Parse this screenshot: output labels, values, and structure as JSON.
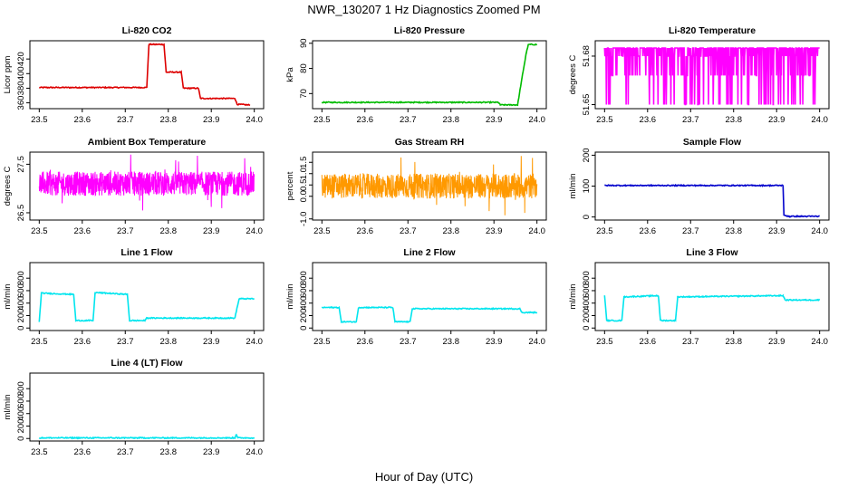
{
  "figure": {
    "title": "NWR_130207  1 Hz Diagnostics Zoomed PM",
    "xlabel": "Hour of Day (UTC)"
  },
  "chart_data": [
    {
      "type": "line",
      "title": "Li-820 CO2",
      "ylabel": "Licor ppm",
      "color": "#dd0000",
      "xlim": [
        23.5,
        24.0
      ],
      "ylim": [
        352,
        445
      ],
      "x_ticks": [
        "23.5",
        "23.6",
        "23.7",
        "23.8",
        "23.9",
        "24.0"
      ],
      "y_ticks": [
        "360",
        "380",
        "400",
        "420"
      ],
      "x": [
        23.5,
        23.75,
        23.755,
        23.79,
        23.795,
        23.83,
        23.835,
        23.87,
        23.875,
        23.955,
        23.96,
        23.99
      ],
      "y": [
        381,
        381,
        440,
        440,
        402,
        402,
        380,
        380,
        366,
        366,
        358,
        357
      ]
    },
    {
      "type": "line",
      "title": "Li-820 Pressure",
      "ylabel": "kPa",
      "color": "#00bb00",
      "xlim": [
        23.5,
        24.0
      ],
      "ylim": [
        64,
        91
      ],
      "x_ticks": [
        "23.5",
        "23.6",
        "23.7",
        "23.8",
        "23.9",
        "24.0"
      ],
      "y_ticks": [
        "70",
        "80",
        "90"
      ],
      "x": [
        23.5,
        23.91,
        23.915,
        23.955,
        23.965,
        23.975,
        23.98,
        24.0
      ],
      "y": [
        66.5,
        66.5,
        65.5,
        65.5,
        76,
        86,
        89.5,
        89.5
      ]
    },
    {
      "type": "line",
      "title": "Li-820 Temperature",
      "ylabel": "degrees C",
      "color": "#ff00ff",
      "xlim": [
        23.5,
        24.0
      ],
      "ylim": [
        51.6475,
        51.6895
      ],
      "x_ticks": [
        "23.5",
        "23.6",
        "23.7",
        "23.8",
        "23.9",
        "24.0"
      ],
      "y_ticks": [
        "51.65",
        "51.68"
      ],
      "levels": [
        51.65,
        51.668,
        51.68,
        51.685
      ]
    },
    {
      "type": "line",
      "title": "Ambient Box Temperature",
      "ylabel": "degrees C",
      "color": "#ff00ff",
      "xlim": [
        23.5,
        24.0
      ],
      "ylim": [
        26.35,
        27.75
      ],
      "x_ticks": [
        "23.5",
        "23.6",
        "23.7",
        "23.8",
        "23.9",
        "24.0"
      ],
      "y_ticks": [
        "26.5",
        "27.5"
      ],
      "mean": 27.1,
      "band": [
        26.85,
        27.35
      ]
    },
    {
      "type": "line",
      "title": "Gas Stream RH",
      "ylabel": "percent",
      "color": "#ff9900",
      "xlim": [
        23.5,
        24.0
      ],
      "ylim": [
        -1.05,
        1.95
      ],
      "x_ticks": [
        "23.5",
        "23.6",
        "23.7",
        "23.8",
        "23.9",
        "24.0"
      ],
      "y_ticks": [
        "-1.0",
        "0.0",
        "0.5",
        "1.0",
        "1.5"
      ],
      "mean": 0.5,
      "band": [
        -0.1,
        1.0
      ]
    },
    {
      "type": "line",
      "title": "Sample Flow",
      "ylabel": "ml/min",
      "color": "#0000cc",
      "xlim": [
        23.5,
        24.0
      ],
      "ylim": [
        -10,
        210
      ],
      "x_ticks": [
        "23.5",
        "23.6",
        "23.7",
        "23.8",
        "23.9",
        "24.0"
      ],
      "y_ticks": [
        "0",
        "100",
        "200"
      ],
      "x": [
        23.5,
        23.915,
        23.917,
        23.93,
        24.0
      ],
      "y": [
        102,
        102,
        5,
        2,
        2
      ]
    },
    {
      "type": "line",
      "title": "Line 1 Flow",
      "ylabel": "ml/min",
      "color": "#00e5ee",
      "xlim": [
        23.5,
        24.0
      ],
      "ylim": [
        -40,
        1050
      ],
      "x_ticks": [
        "23.5",
        "23.6",
        "23.7",
        "23.8",
        "23.9",
        "24.0"
      ],
      "y_ticks": [
        "0",
        "200",
        "400",
        "600",
        "800"
      ],
      "x": [
        23.5,
        23.505,
        23.58,
        23.585,
        23.625,
        23.63,
        23.705,
        23.71,
        23.745,
        23.75,
        23.955,
        23.96,
        23.965,
        24.0
      ],
      "y": [
        100,
        560,
        540,
        120,
        120,
        570,
        540,
        120,
        120,
        160,
        160,
        330,
        470,
        470
      ]
    },
    {
      "type": "line",
      "title": "Line 2 Flow",
      "ylabel": "ml/min",
      "color": "#00e5ee",
      "xlim": [
        23.5,
        24.0
      ],
      "ylim": [
        -40,
        1050
      ],
      "x_ticks": [
        "23.5",
        "23.6",
        "23.7",
        "23.8",
        "23.9",
        "24.0"
      ],
      "y_ticks": [
        "0",
        "200",
        "400",
        "600",
        "800"
      ],
      "x": [
        23.5,
        23.54,
        23.545,
        23.58,
        23.585,
        23.665,
        23.67,
        23.705,
        23.71,
        23.96,
        23.965,
        24.0
      ],
      "y": [
        330,
        330,
        100,
        100,
        330,
        330,
        100,
        100,
        310,
        310,
        250,
        250
      ]
    },
    {
      "type": "line",
      "title": "Line 3 Flow",
      "ylabel": "ml/min",
      "color": "#00e5ee",
      "xlim": [
        23.5,
        24.0
      ],
      "ylim": [
        -40,
        1050
      ],
      "x_ticks": [
        "23.5",
        "23.6",
        "23.7",
        "23.8",
        "23.9",
        "24.0"
      ],
      "y_ticks": [
        "0",
        "200",
        "400",
        "600",
        "800"
      ],
      "x": [
        23.5,
        23.505,
        23.54,
        23.545,
        23.625,
        23.63,
        23.665,
        23.67,
        23.915,
        23.92,
        24.0
      ],
      "y": [
        520,
        120,
        120,
        500,
        520,
        120,
        120,
        500,
        520,
        450,
        450
      ]
    },
    {
      "type": "line",
      "title": "Line 4 (LT) Flow",
      "ylabel": "ml/min",
      "color": "#00e5ee",
      "xlim": [
        23.5,
        24.0
      ],
      "ylim": [
        -40,
        1050
      ],
      "x_ticks": [
        "23.5",
        "23.6",
        "23.7",
        "23.8",
        "23.9",
        "24.0"
      ],
      "y_ticks": [
        "0",
        "200",
        "400",
        "600",
        "800"
      ],
      "x": [
        23.5,
        23.955,
        23.958,
        23.962,
        24.0
      ],
      "y": [
        10,
        10,
        70,
        10,
        10
      ]
    }
  ]
}
